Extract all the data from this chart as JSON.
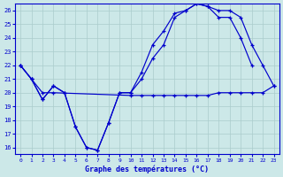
{
  "title": "Graphe des températures (°C)",
  "bg_color": "#cce8e8",
  "line_color": "#0000cc",
  "grid_color": "#aacccc",
  "xlim": [
    -0.5,
    23.5
  ],
  "ylim": [
    15.5,
    26.5
  ],
  "yticks": [
    16,
    17,
    18,
    19,
    20,
    21,
    22,
    23,
    24,
    25,
    26
  ],
  "xticks": [
    0,
    1,
    2,
    3,
    4,
    5,
    6,
    7,
    8,
    9,
    10,
    11,
    12,
    13,
    14,
    15,
    16,
    17,
    18,
    19,
    20,
    21,
    22,
    23
  ],
  "series": [
    {
      "x": [
        0,
        1,
        2,
        3,
        4,
        5,
        6,
        7,
        8,
        9,
        10,
        11,
        12,
        13,
        14,
        15,
        16,
        17,
        18,
        19,
        20,
        21
      ],
      "y": [
        22,
        21,
        19.5,
        20.5,
        20.0,
        17.5,
        16.0,
        15.8,
        17.8,
        20.0,
        20.0,
        21.5,
        23.5,
        24.5,
        25.8,
        26.0,
        26.5,
        26.3,
        25.5,
        25.5,
        24.0,
        22.0
      ]
    },
    {
      "x": [
        0,
        1,
        2,
        3,
        4,
        5,
        6,
        7,
        8,
        9,
        10,
        11,
        12,
        13,
        14,
        15,
        16,
        17,
        18,
        19,
        20,
        21,
        22,
        23
      ],
      "y": [
        22,
        21,
        19.5,
        20.5,
        20.0,
        17.5,
        16.0,
        15.8,
        17.8,
        20.0,
        20.0,
        21.0,
        22.5,
        23.5,
        25.5,
        26.0,
        26.5,
        26.3,
        26.0,
        26.0,
        25.5,
        23.5,
        22.0,
        20.5
      ]
    },
    {
      "x": [
        0,
        1,
        2,
        3,
        10,
        11,
        12,
        13,
        14,
        15,
        16,
        17,
        18,
        19,
        20,
        21,
        22,
        23
      ],
      "y": [
        22,
        21.0,
        20.0,
        20.0,
        19.8,
        19.8,
        19.8,
        19.8,
        19.8,
        19.8,
        19.8,
        19.8,
        20.0,
        20.0,
        20.0,
        20.0,
        20.0,
        20.5
      ]
    }
  ]
}
